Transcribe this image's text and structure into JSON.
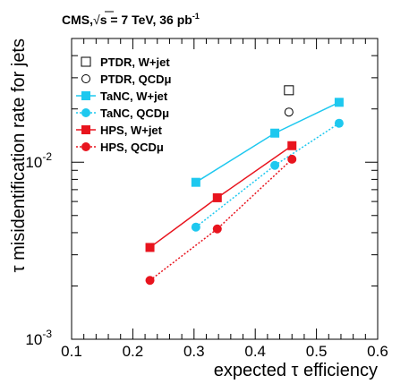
{
  "chart_data": {
    "type": "line",
    "title": "CMS,√s = 7 TeV, 36 pb-1",
    "title_parts": {
      "experiment": "CMS,",
      "sqrt": "√",
      "energy": "s = 7 TeV, 36 pb",
      "lumi_exp": "-1"
    },
    "xlabel": "expected τ efficiency",
    "ylabel": "τ misidentification rate for jets",
    "xlim": [
      0.1,
      0.6
    ],
    "ylim": [
      0.001,
      0.05
    ],
    "yscale": "log",
    "xticks": [
      "0.1",
      "0.2",
      "0.3",
      "0.4",
      "0.5",
      "0.6"
    ],
    "yticks": [
      {
        "base": "10",
        "exp": "-3"
      },
      {
        "base": "10",
        "exp": "-2"
      }
    ],
    "legend_position": "top-right",
    "series": [
      {
        "name": "PTDR, W+jet",
        "color": "#000000",
        "marker": "open-square",
        "line": "none",
        "dashed": false,
        "x": [
          0.455
        ],
        "y": [
          0.0255
        ]
      },
      {
        "name": "PTDR, QCDμ",
        "color": "#000000",
        "marker": "open-circle",
        "line": "none",
        "dashed": false,
        "x": [
          0.455
        ],
        "y": [
          0.0192
        ]
      },
      {
        "name": "TaNC, W+jet",
        "color": "#1ec8ef",
        "marker": "filled-square",
        "line": "solid",
        "dashed": false,
        "x": [
          0.303,
          0.432,
          0.537
        ],
        "y": [
          0.0077,
          0.0146,
          0.0218
        ]
      },
      {
        "name": "TaNC, QCDμ",
        "color": "#1ec8ef",
        "marker": "filled-circle",
        "line": "dotted",
        "dashed": true,
        "x": [
          0.303,
          0.432,
          0.537
        ],
        "y": [
          0.0043,
          0.0096,
          0.0166
        ]
      },
      {
        "name": "HPS, W+jet",
        "color": "#e8141e",
        "marker": "filled-square",
        "line": "solid",
        "dashed": false,
        "x": [
          0.228,
          0.338,
          0.46
        ],
        "y": [
          0.0033,
          0.0063,
          0.0124
        ]
      },
      {
        "name": "HPS, QCDμ",
        "color": "#e8141e",
        "marker": "filled-circle",
        "line": "dotted",
        "dashed": true,
        "x": [
          0.228,
          0.338,
          0.46
        ],
        "y": [
          0.00215,
          0.0042,
          0.0104
        ]
      }
    ]
  }
}
